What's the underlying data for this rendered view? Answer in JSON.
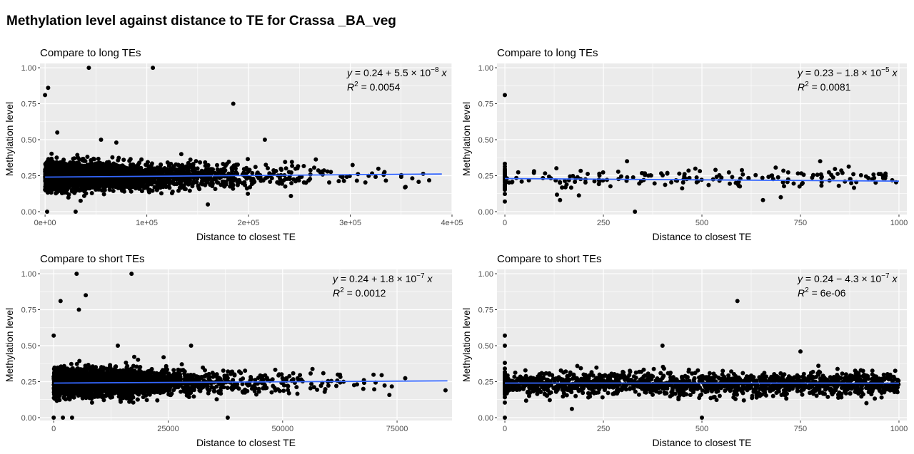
{
  "title": "Methylation level against distance to TE for Crassa _BA_veg",
  "colors": {
    "panel_bg": "#ebebeb",
    "grid": "#ffffff",
    "points": "#000000",
    "fit_line": "#3366ff",
    "tick_text": "#4d4d4d"
  },
  "chart_data": [
    {
      "type": "scatter",
      "title": "Compare to long TEs",
      "xlabel": "Distance to closest TE",
      "ylabel": "Methylation level",
      "xlim": [
        -5000,
        400000
      ],
      "ylim": [
        -0.02,
        1.03
      ],
      "xticks": [
        0,
        100000,
        200000,
        300000,
        400000
      ],
      "xtick_labels": [
        "0e+00",
        "1e+05",
        "2e+05",
        "3e+05",
        "4e+05"
      ],
      "yticks": [
        0,
        0.25,
        0.5,
        0.75,
        1
      ],
      "ytick_labels": [
        "0.00",
        "0.25",
        "0.50",
        "0.75",
        "1.00"
      ],
      "grid": true,
      "fit": {
        "intercept": 0.24,
        "slope": 5.5e-08,
        "r2_text": "0.0054",
        "eq_a": "0.24",
        "eq_op": "+",
        "eq_mant": "5.5",
        "eq_exp": "−8"
      },
      "cloud": {
        "n": 3200,
        "xmax": 390000,
        "mean": 0.245,
        "sd": 0.045,
        "decay": 60000
      },
      "outliers": [
        [
          0,
          0.81
        ],
        [
          3000,
          0.86
        ],
        [
          43000,
          1.0
        ],
        [
          106000,
          1.0
        ],
        [
          185000,
          0.75
        ],
        [
          216000,
          0.5
        ],
        [
          55000,
          0.5
        ],
        [
          70000,
          0.48
        ],
        [
          160000,
          0.05
        ],
        [
          30000,
          0.0
        ],
        [
          12000,
          0.55
        ],
        [
          2000,
          0.0
        ]
      ]
    },
    {
      "type": "scatter",
      "title": "Compare to long TEs",
      "xlabel": "Distance to closest TE",
      "ylabel": "Methylation level",
      "xlim": [
        -20,
        1020
      ],
      "ylim": [
        -0.02,
        1.03
      ],
      "xticks": [
        0,
        250,
        500,
        750,
        1000
      ],
      "xtick_labels": [
        "0",
        "250",
        "500",
        "750",
        "1000"
      ],
      "yticks": [
        0,
        0.25,
        0.5,
        0.75,
        1
      ],
      "ytick_labels": [
        "0.00",
        "0.25",
        "0.50",
        "0.75",
        "1.00"
      ],
      "grid": true,
      "fit": {
        "intercept": 0.23,
        "slope": -1.8e-05,
        "r2_text": "0.0081",
        "eq_a": "0.23",
        "eq_op": "−",
        "eq_mant": "1.8",
        "eq_exp": "−5"
      },
      "cloud": {
        "n": 170,
        "xmax": 1000,
        "mean": 0.235,
        "sd": 0.035,
        "decay": 0,
        "zero_stack": 45
      },
      "outliers": [
        [
          0,
          0.81
        ],
        [
          330,
          0.0
        ],
        [
          800,
          0.35
        ],
        [
          0,
          0.07
        ],
        [
          140,
          0.08
        ],
        [
          655,
          0.08
        ],
        [
          310,
          0.35
        ],
        [
          700,
          0.1
        ]
      ]
    },
    {
      "type": "scatter",
      "title": "Compare to short TEs",
      "xlabel": "Distance to closest TE",
      "ylabel": "Methylation level",
      "xlim": [
        -3000,
        87000
      ],
      "ylim": [
        -0.02,
        1.03
      ],
      "xticks": [
        0,
        25000,
        50000,
        75000
      ],
      "xtick_labels": [
        "0",
        "25000",
        "50000",
        "75000"
      ],
      "yticks": [
        0,
        0.25,
        0.5,
        0.75,
        1
      ],
      "ytick_labels": [
        "0.00",
        "0.25",
        "0.50",
        "0.75",
        "1.00"
      ],
      "grid": true,
      "fit": {
        "intercept": 0.24,
        "slope": 1.8e-07,
        "r2_text": "0.0012",
        "eq_a": "0.24",
        "eq_op": "+",
        "eq_mant": "1.8",
        "eq_exp": "−7"
      },
      "cloud": {
        "n": 3200,
        "xmax": 86000,
        "mean": 0.245,
        "sd": 0.045,
        "decay": 12000
      },
      "outliers": [
        [
          1500,
          0.81
        ],
        [
          5000,
          1.0
        ],
        [
          17000,
          1.0
        ],
        [
          14000,
          0.5
        ],
        [
          7000,
          0.85
        ],
        [
          5500,
          0.75
        ],
        [
          30000,
          0.5
        ],
        [
          38000,
          0.0
        ],
        [
          0,
          0.57
        ],
        [
          24000,
          0.42
        ],
        [
          0,
          0.0
        ],
        [
          2000,
          0.0
        ],
        [
          4000,
          0.0
        ]
      ]
    },
    {
      "type": "scatter",
      "title": "Compare to short TEs",
      "xlabel": "Distance to closest TE",
      "ylabel": "Methylation level",
      "xlim": [
        -20,
        1020
      ],
      "ylim": [
        -0.02,
        1.03
      ],
      "xticks": [
        0,
        250,
        500,
        750,
        1000
      ],
      "xtick_labels": [
        "0",
        "250",
        "500",
        "750",
        "1000"
      ],
      "yticks": [
        0,
        0.25,
        0.5,
        0.75,
        1
      ],
      "ytick_labels": [
        "0.00",
        "0.25",
        "0.50",
        "0.75",
        "1.00"
      ],
      "grid": true,
      "fit": {
        "intercept": 0.24,
        "slope": -4.3e-07,
        "r2_text": "6e-06",
        "eq_a": "0.24",
        "eq_op": "−",
        "eq_mant": "4.3",
        "eq_exp": "−7"
      },
      "cloud": {
        "n": 1500,
        "xmax": 1000,
        "mean": 0.235,
        "sd": 0.04,
        "decay": 0,
        "zero_stack": 120
      },
      "outliers": [
        [
          0,
          0.57
        ],
        [
          0,
          0.5
        ],
        [
          0,
          0.0
        ],
        [
          400,
          0.5
        ],
        [
          590,
          0.81
        ],
        [
          750,
          0.46
        ],
        [
          500,
          0.0
        ],
        [
          170,
          0.06
        ]
      ]
    }
  ]
}
